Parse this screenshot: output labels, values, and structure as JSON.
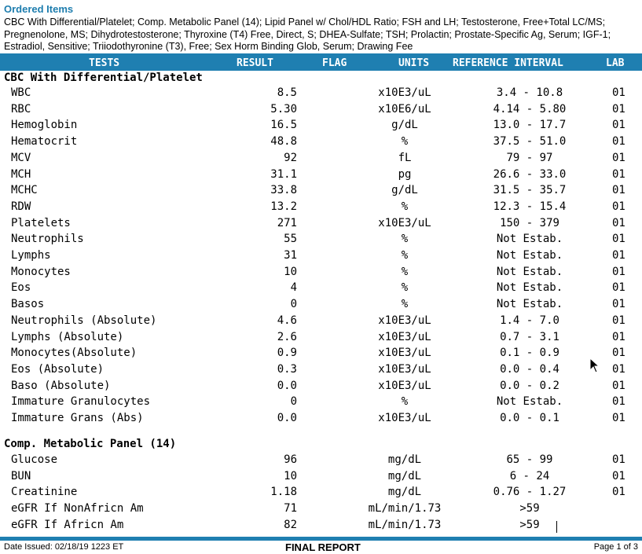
{
  "ordered": {
    "title": "Ordered Items",
    "text": "CBC With Differential/Platelet; Comp. Metabolic Panel (14); Lipid Panel w/ Chol/HDL Ratio; FSH and LH; Testosterone, Free+Total LC/MS; Pregnenolone, MS; Dihydrotestosterone; Thyroxine (T4) Free, Direct, S; DHEA-Sulfate; TSH; Prolactin; Prostate-Specific Ag, Serum; IGF-1; Estradiol, Sensitive; Triiodothyronine (T3), Free; Sex Horm Binding Glob, Serum; Drawing Fee"
  },
  "headers": {
    "tests": "TESTS",
    "result": "RESULT",
    "flag": "FLAG",
    "units": "UNITS",
    "reference": "REFERENCE INTERVAL",
    "lab": "LAB"
  },
  "sections": [
    {
      "title": "CBC With Differential/Platelet",
      "rows": [
        {
          "test": "WBC",
          "result": "8.5",
          "units": "x10E3/uL",
          "ref": "3.4 - 10.8",
          "lab": "01"
        },
        {
          "test": "RBC",
          "result": "5.30",
          "units": "x10E6/uL",
          "ref": "4.14 - 5.80",
          "lab": "01"
        },
        {
          "test": "Hemoglobin",
          "result": "16.5",
          "units": "g/dL",
          "ref": "13.0 - 17.7",
          "lab": "01"
        },
        {
          "test": "Hematocrit",
          "result": "48.8",
          "units": "%",
          "ref": "37.5 - 51.0",
          "lab": "01"
        },
        {
          "test": "MCV",
          "result": "92",
          "units": "fL",
          "ref": "79 - 97",
          "lab": "01"
        },
        {
          "test": "MCH",
          "result": "31.1",
          "units": "pg",
          "ref": "26.6 - 33.0",
          "lab": "01"
        },
        {
          "test": "MCHC",
          "result": "33.8",
          "units": "g/dL",
          "ref": "31.5 - 35.7",
          "lab": "01"
        },
        {
          "test": "RDW",
          "result": "13.2",
          "units": "%",
          "ref": "12.3 - 15.4",
          "lab": "01"
        },
        {
          "test": "Platelets",
          "result": "271",
          "units": "x10E3/uL",
          "ref": "150 - 379",
          "lab": "01"
        },
        {
          "test": "Neutrophils",
          "result": "55",
          "units": "%",
          "ref": "Not Estab.",
          "lab": "01"
        },
        {
          "test": "Lymphs",
          "result": "31",
          "units": "%",
          "ref": "Not Estab.",
          "lab": "01"
        },
        {
          "test": "Monocytes",
          "result": "10",
          "units": "%",
          "ref": "Not Estab.",
          "lab": "01"
        },
        {
          "test": "Eos",
          "result": "4",
          "units": "%",
          "ref": "Not Estab.",
          "lab": "01"
        },
        {
          "test": "Basos",
          "result": "0",
          "units": "%",
          "ref": "Not Estab.",
          "lab": "01"
        },
        {
          "test": "Neutrophils (Absolute)",
          "result": "4.6",
          "units": "x10E3/uL",
          "ref": "1.4 - 7.0",
          "lab": "01"
        },
        {
          "test": "Lymphs (Absolute)",
          "result": "2.6",
          "units": "x10E3/uL",
          "ref": "0.7 - 3.1",
          "lab": "01"
        },
        {
          "test": "Monocytes(Absolute)",
          "result": "0.9",
          "units": "x10E3/uL",
          "ref": "0.1 - 0.9",
          "lab": "01"
        },
        {
          "test": "Eos (Absolute)",
          "result": "0.3",
          "units": "x10E3/uL",
          "ref": "0.0 - 0.4",
          "lab": "01"
        },
        {
          "test": "Baso (Absolute)",
          "result": "0.0",
          "units": "x10E3/uL",
          "ref": "0.0 - 0.2",
          "lab": "01"
        },
        {
          "test": "Immature Granulocytes",
          "result": "0",
          "units": "%",
          "ref": "Not Estab.",
          "lab": "01"
        },
        {
          "test": "Immature Grans (Abs)",
          "result": "0.0",
          "units": "x10E3/uL",
          "ref": "0.0 - 0.1",
          "lab": "01"
        }
      ]
    },
    {
      "title": "Comp. Metabolic Panel (14)",
      "rows": [
        {
          "test": "Glucose",
          "result": "96",
          "units": "mg/dL",
          "ref": "65 - 99",
          "lab": "01"
        },
        {
          "test": "BUN",
          "result": "10",
          "units": "mg/dL",
          "ref": "6 - 24",
          "lab": "01"
        },
        {
          "test": "Creatinine",
          "result": "1.18",
          "units": "mg/dL",
          "ref": "0.76 - 1.27",
          "lab": "01"
        },
        {
          "test": "eGFR If NonAfricn Am",
          "result": "71",
          "units": "mL/min/1.73",
          "ref": ">59",
          "lab": ""
        },
        {
          "test": "eGFR If Africn Am",
          "result": "82",
          "units": "mL/min/1.73",
          "ref": ">59",
          "lab": ""
        }
      ]
    }
  ],
  "footer": {
    "date": "Date Issued: 02/18/19 1223 ET",
    "status": "FINAL REPORT",
    "page": "Page 1 of 3"
  }
}
